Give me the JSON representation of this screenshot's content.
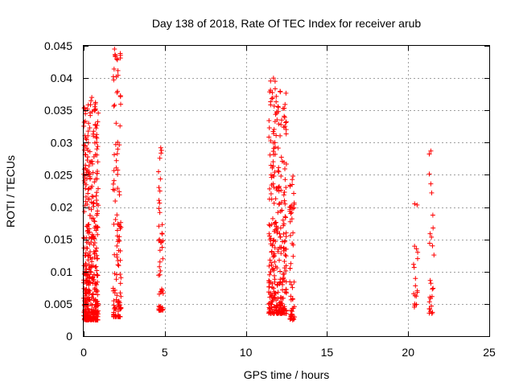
{
  "chart_data": {
    "type": "scatter",
    "title": "Day 138 of 2018, Rate Of TEC Index for receiver arub",
    "xlabel": "GPS time / hours",
    "ylabel": "ROTI / TECUs",
    "xlim": [
      0,
      25
    ],
    "ylim": [
      0,
      0.045
    ],
    "xticks": [
      0,
      5,
      10,
      15,
      20,
      25
    ],
    "xtick_labels": [
      "0",
      "5",
      "10",
      "15",
      "20",
      "25"
    ],
    "yticks": [
      0,
      0.005,
      0.01,
      0.015,
      0.02,
      0.025,
      0.03,
      0.035,
      0.04,
      0.045
    ],
    "ytick_labels": [
      "0",
      "0.005",
      "0.01",
      "0.015",
      "0.02",
      "0.025",
      "0.03",
      "0.035",
      "0.04",
      "0.045"
    ],
    "grid": true,
    "marker": "+",
    "color": "#ff0000",
    "clusters": [
      {
        "x_range": [
          0.0,
          0.9
        ],
        "y_range": [
          0.0025,
          0.037
        ],
        "approx_points": 420
      },
      {
        "x_range": [
          1.8,
          2.3
        ],
        "y_range": [
          0.003,
          0.044
        ],
        "approx_points": 120
      },
      {
        "x_range": [
          4.6,
          4.9
        ],
        "y_range": [
          0.004,
          0.029
        ],
        "approx_points": 45
      },
      {
        "x_range": [
          11.4,
          12.5
        ],
        "y_range": [
          0.0035,
          0.04
        ],
        "approx_points": 320
      },
      {
        "x_range": [
          12.7,
          13.0
        ],
        "y_range": [
          0.0025,
          0.0245
        ],
        "approx_points": 50
      },
      {
        "x_range": [
          20.3,
          20.6
        ],
        "y_range": [
          0.0045,
          0.0205
        ],
        "approx_points": 15
      },
      {
        "x_range": [
          21.3,
          21.6
        ],
        "y_range": [
          0.0035,
          0.0285
        ],
        "approx_points": 22
      }
    ],
    "sample_points": [
      [
        0.45,
        0.0365
      ],
      [
        0.5,
        0.037
      ],
      [
        0.3,
        0.033
      ],
      [
        0.6,
        0.031
      ],
      [
        0.1,
        0.0265
      ],
      [
        1.9,
        0.0445
      ],
      [
        1.95,
        0.0435
      ],
      [
        1.9,
        0.0358
      ],
      [
        2.0,
        0.033
      ],
      [
        2.1,
        0.029
      ],
      [
        4.75,
        0.0292
      ],
      [
        4.8,
        0.0288
      ],
      [
        4.7,
        0.0225
      ],
      [
        4.75,
        0.0145
      ],
      [
        4.8,
        0.007
      ],
      [
        11.7,
        0.04
      ],
      [
        11.8,
        0.0395
      ],
      [
        11.9,
        0.0348
      ],
      [
        12.0,
        0.0355
      ],
      [
        12.2,
        0.0335
      ],
      [
        12.9,
        0.0248
      ],
      [
        12.85,
        0.0235
      ],
      [
        12.9,
        0.016
      ],
      [
        12.8,
        0.008
      ],
      [
        12.9,
        0.003
      ],
      [
        20.4,
        0.0205
      ],
      [
        20.45,
        0.0078
      ],
      [
        20.5,
        0.0062
      ],
      [
        20.4,
        0.005
      ],
      [
        21.4,
        0.0287
      ],
      [
        21.45,
        0.0222
      ],
      [
        21.5,
        0.014
      ],
      [
        21.4,
        0.0082
      ],
      [
        21.5,
        0.0037
      ]
    ]
  }
}
